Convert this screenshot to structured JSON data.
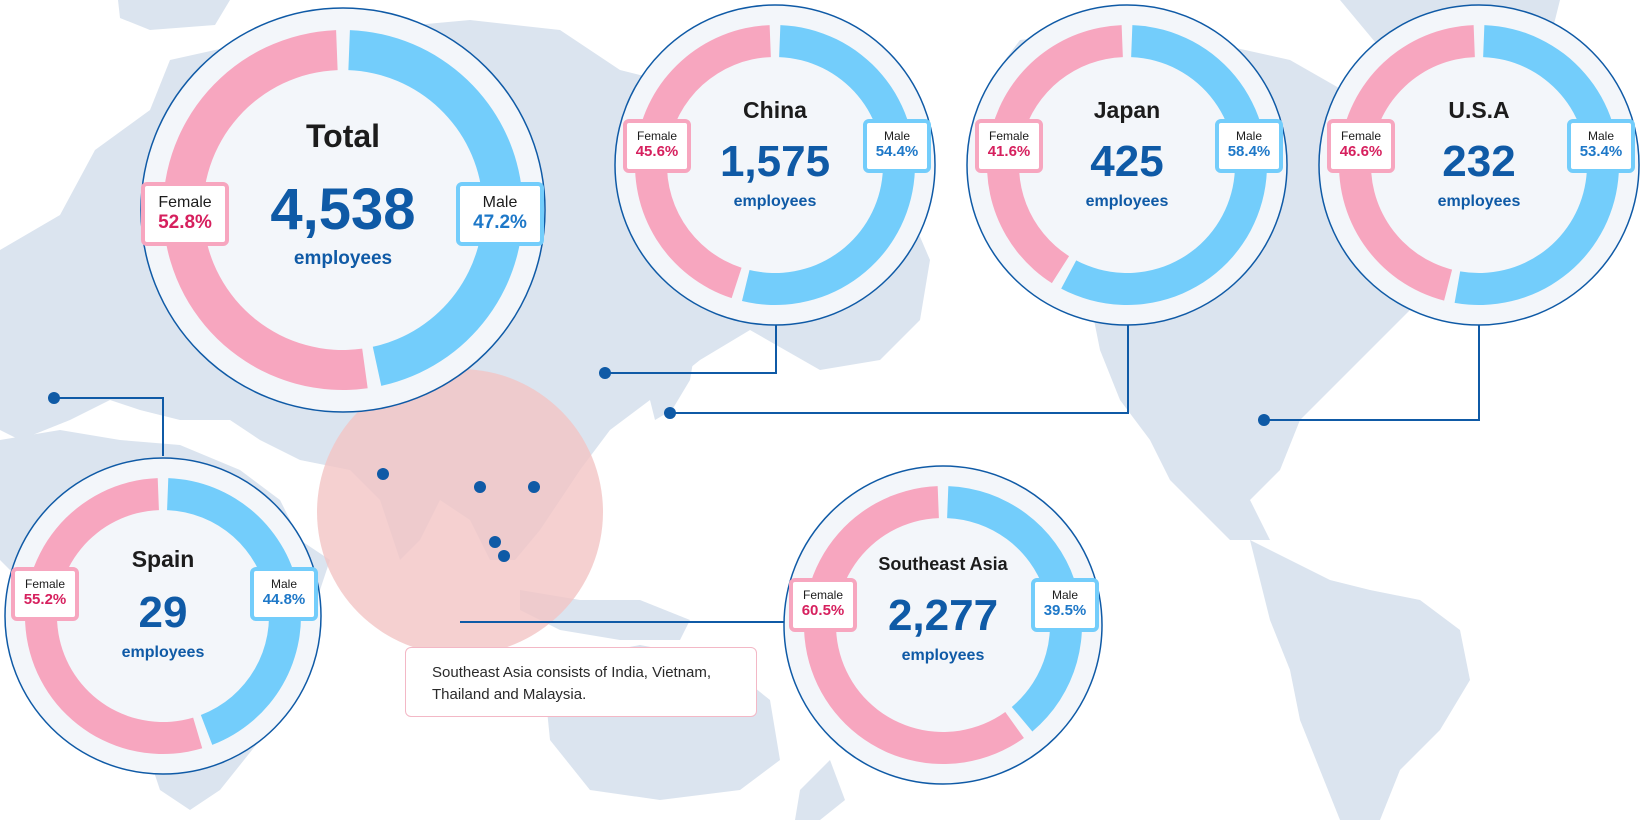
{
  "chart_data": [
    {
      "type": "pie",
      "title": "Total",
      "total": "4,538",
      "unit": "employees",
      "categories": [
        "Female",
        "Male"
      ],
      "values": [
        52.8,
        47.2
      ],
      "labels": [
        "52.8%",
        "47.2%"
      ]
    },
    {
      "type": "pie",
      "title": "China",
      "total": "1,575",
      "unit": "employees",
      "categories": [
        "Female",
        "Male"
      ],
      "values": [
        45.6,
        54.4
      ],
      "labels": [
        "45.6%",
        "54.4%"
      ]
    },
    {
      "type": "pie",
      "title": "Japan",
      "total": "425",
      "unit": "employees",
      "categories": [
        "Female",
        "Male"
      ],
      "values": [
        41.6,
        58.4
      ],
      "labels": [
        "41.6%",
        "58.4%"
      ]
    },
    {
      "type": "pie",
      "title": "U.S.A",
      "total": "232",
      "unit": "employees",
      "categories": [
        "Female",
        "Male"
      ],
      "values": [
        46.6,
        53.4
      ],
      "labels": [
        "46.6%",
        "53.4%"
      ]
    },
    {
      "type": "pie",
      "title": "Spain",
      "total": "29",
      "unit": "employees",
      "categories": [
        "Female",
        "Male"
      ],
      "values": [
        55.2,
        44.8
      ],
      "labels": [
        "55.2%",
        "44.8%"
      ]
    },
    {
      "type": "pie",
      "title": "Southeast Asia",
      "total": "2,277",
      "unit": "employees",
      "categories": [
        "Female",
        "Male"
      ],
      "values": [
        60.5,
        39.5
      ],
      "labels": [
        "60.5%",
        "39.5%"
      ]
    }
  ],
  "note": "Southeast Asia consists of India, Vietnam, Thailand and Malaysia.",
  "colors": {
    "female": "#f7a6bf",
    "male": "#73cdfb",
    "female_text": "#d6205e",
    "male_text": "#1e78c8",
    "accent": "#0f5aa6",
    "map": "#dbe4ef",
    "highlight": "#f2c4c4"
  }
}
